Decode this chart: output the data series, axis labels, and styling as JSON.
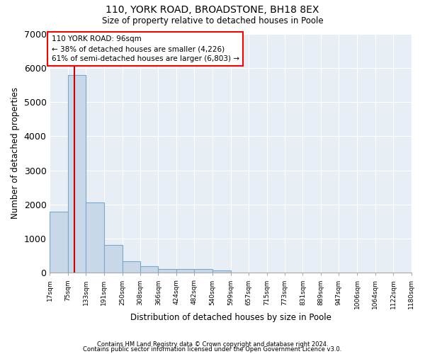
{
  "title1": "110, YORK ROAD, BROADSTONE, BH18 8EX",
  "title2": "Size of property relative to detached houses in Poole",
  "xlabel": "Distribution of detached houses by size in Poole",
  "ylabel": "Number of detached properties",
  "footnote1": "Contains HM Land Registry data © Crown copyright and database right 2024.",
  "footnote2": "Contains public sector information licensed under the Open Government Licence v3.0.",
  "bar_color": "#c8d8e8",
  "bar_edge_color": "#7aa8c8",
  "background_color": "#e8eef5",
  "grid_color": "#ffffff",
  "red_line_color": "#cc0000",
  "annotation_text": "110 YORK ROAD: 96sqm\n← 38% of detached houses are smaller (4,226)\n61% of semi-detached houses are larger (6,803) →",
  "property_sqm": 96,
  "bin_edges": [
    17,
    75,
    133,
    191,
    250,
    308,
    366,
    424,
    482,
    540,
    599,
    657,
    715,
    773,
    831,
    889,
    947,
    1006,
    1064,
    1122,
    1180
  ],
  "counts": [
    1780,
    5780,
    2060,
    820,
    340,
    195,
    120,
    110,
    100,
    75,
    0,
    0,
    0,
    0,
    0,
    0,
    0,
    0,
    0,
    0
  ],
  "ylim": [
    0,
    7000
  ],
  "yticks": [
    0,
    1000,
    2000,
    3000,
    4000,
    5000,
    6000,
    7000
  ]
}
